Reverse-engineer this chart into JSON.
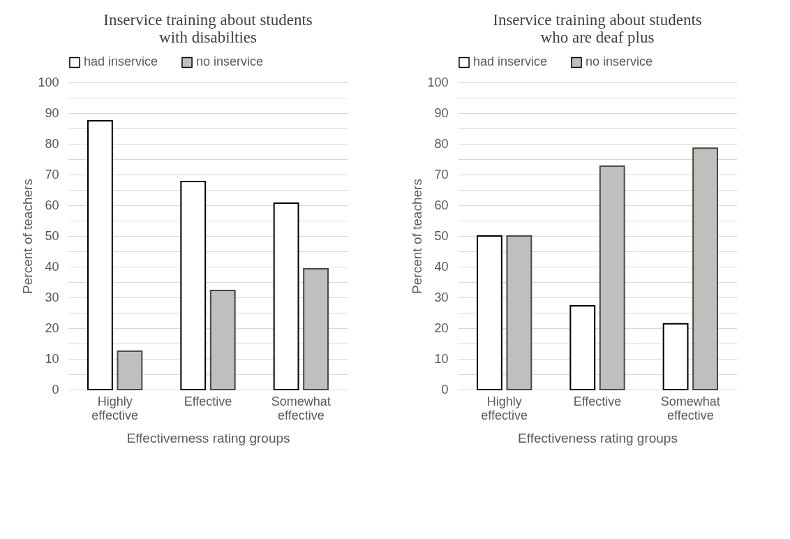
{
  "chart_data": [
    {
      "type": "bar",
      "title": "Inservice training about students with disabilties",
      "xlabel": "Effectivemess rating groups",
      "ylabel": "Percent of teachers",
      "categories": [
        "Highly effective",
        "Effective",
        "Somewhat effective"
      ],
      "series": [
        {
          "name": "had inservice",
          "color": "#ffffff",
          "values": [
            87.5,
            67.7,
            60.7
          ]
        },
        {
          "name": "no inservice",
          "color": "#bfbfbf",
          "values": [
            12.5,
            32.3,
            39.3
          ]
        }
      ],
      "ylim": [
        0,
        100
      ],
      "yticks": [
        0,
        {
          "value": 5,
          "label": null
        },
        10,
        {
          "value": 15,
          "label": null
        },
        20,
        {
          "value": 25,
          "label": null
        },
        30,
        {
          "value": 35,
          "label": null
        },
        40,
        {
          "value": 45,
          "label": null
        },
        50,
        {
          "value": 55,
          "label": null
        },
        60,
        {
          "value": 65,
          "label": null
        },
        70,
        {
          "value": 75,
          "label": null
        },
        80,
        {
          "value": 85,
          "label": null
        },
        90,
        {
          "value": 95,
          "label": null
        },
        100
      ],
      "grid": "y",
      "legend": "top"
    },
    {
      "type": "bar",
      "title": "Inservice training about students who are deaf plus",
      "xlabel": "Effectiveness rating groups",
      "ylabel": "Percent of teachers",
      "categories": [
        "Highly effective",
        "Effective",
        "Somewhat effective"
      ],
      "series": [
        {
          "name": "had inservice",
          "color": "#ffffff",
          "values": [
            50,
            27.3,
            21.4
          ]
        },
        {
          "name": "no inservice",
          "color": "#bfbfbf",
          "values": [
            50,
            72.7,
            78.6
          ]
        }
      ],
      "ylim": [
        0,
        100
      ],
      "yticks": [
        0,
        {
          "value": 5,
          "label": null
        },
        10,
        {
          "value": 15,
          "label": null
        },
        20,
        {
          "value": 25,
          "label": null
        },
        30,
        {
          "value": 35,
          "label": null
        },
        40,
        {
          "value": 45,
          "label": null
        },
        50,
        {
          "value": 55,
          "label": null
        },
        60,
        {
          "value": 65,
          "label": null
        },
        70,
        {
          "value": 75,
          "label": null
        },
        80,
        {
          "value": 85,
          "label": null
        },
        90,
        {
          "value": 95,
          "label": null
        },
        100
      ],
      "grid": "y",
      "legend": "top"
    }
  ]
}
